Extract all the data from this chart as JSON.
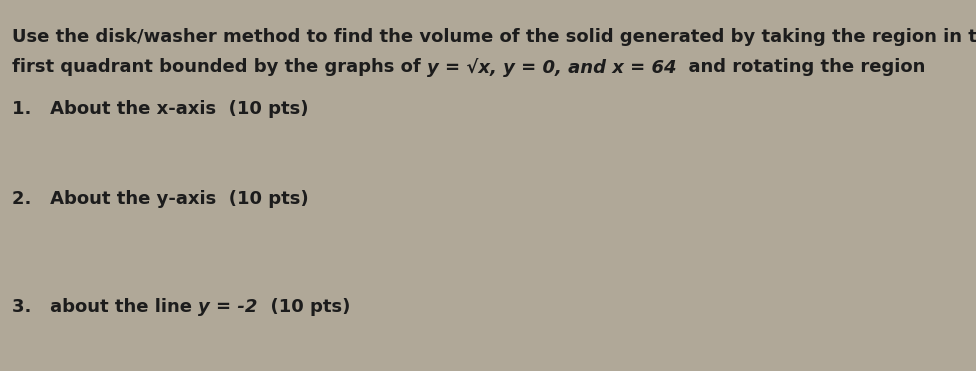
{
  "bg_color": "#b0a898",
  "text_color": "#1c1c1c",
  "fig_width": 9.76,
  "fig_height": 3.71,
  "dpi": 100,
  "line1": "Use the disk/washer method to find the volume of the solid generated by taking the region in the",
  "line2_part1": "first quadrant bounded by the graphs of ",
  "line2_math": "y = √x, y = 0, and x = 64",
  "line2_part2": "  and rotating the region",
  "item1": "1.   About the x-axis  (10 pts)",
  "item2": "2.   About the y-axis  (10 pts)",
  "item3_part1": "3.   about the line ",
  "item3_math": "y = -2",
  "item3_part2": "  (10 pts)",
  "font_size": 13.0
}
